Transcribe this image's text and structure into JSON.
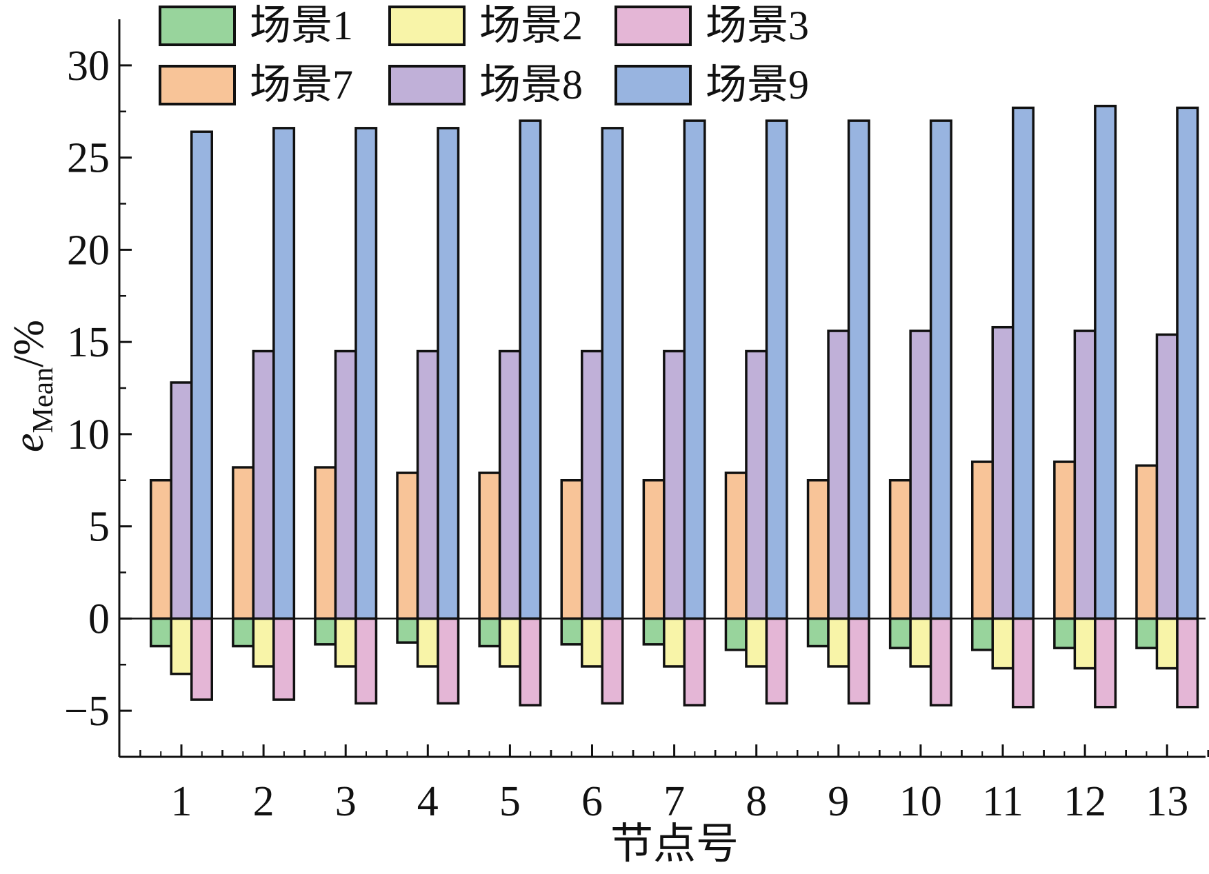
{
  "chart_data": {
    "type": "bar",
    "xlabel": "节点号",
    "ylabel_main": "e",
    "ylabel_sub": "Mean",
    "ylabel_unit": "/%",
    "ylim": [
      -7.5,
      32.5
    ],
    "yticks": [
      -5,
      0,
      5,
      10,
      15,
      20,
      25,
      30
    ],
    "ytick_labels": [
      "−5",
      "0",
      "5",
      "10",
      "15",
      "20",
      "25",
      "30"
    ],
    "categories": [
      "1",
      "2",
      "3",
      "4",
      "5",
      "6",
      "7",
      "8",
      "9",
      "10",
      "11",
      "12",
      "13"
    ],
    "legend_position": "top",
    "series": [
      {
        "name": "场景1",
        "color": "#98d49c",
        "values": [
          -1.5,
          -1.5,
          -1.4,
          -1.3,
          -1.5,
          -1.4,
          -1.4,
          -1.7,
          -1.5,
          -1.6,
          -1.7,
          -1.6,
          -1.6
        ]
      },
      {
        "name": "场景2",
        "color": "#f8f4a8",
        "values": [
          -3.0,
          -2.6,
          -2.6,
          -2.6,
          -2.6,
          -2.6,
          -2.6,
          -2.6,
          -2.6,
          -2.6,
          -2.7,
          -2.7,
          -2.7
        ]
      },
      {
        "name": "场景3",
        "color": "#e4b6d6",
        "values": [
          -4.4,
          -4.4,
          -4.6,
          -4.6,
          -4.7,
          -4.6,
          -4.7,
          -4.6,
          -4.6,
          -4.7,
          -4.8,
          -4.8,
          -4.8
        ]
      },
      {
        "name": "场景7",
        "color": "#f8c498",
        "values": [
          7.5,
          8.2,
          8.2,
          7.9,
          7.9,
          7.5,
          7.5,
          7.9,
          7.5,
          7.5,
          8.5,
          8.5,
          8.3
        ]
      },
      {
        "name": "场景8",
        "color": "#c0b0d8",
        "values": [
          12.8,
          14.5,
          14.5,
          14.5,
          14.5,
          14.5,
          14.5,
          14.5,
          15.6,
          15.6,
          15.8,
          15.6,
          15.4
        ]
      },
      {
        "name": "场景9",
        "color": "#98b4e0",
        "values": [
          26.4,
          26.6,
          26.6,
          26.6,
          27.0,
          26.6,
          27.0,
          27.0,
          27.0,
          27.0,
          27.7,
          27.8,
          27.7
        ]
      }
    ]
  }
}
